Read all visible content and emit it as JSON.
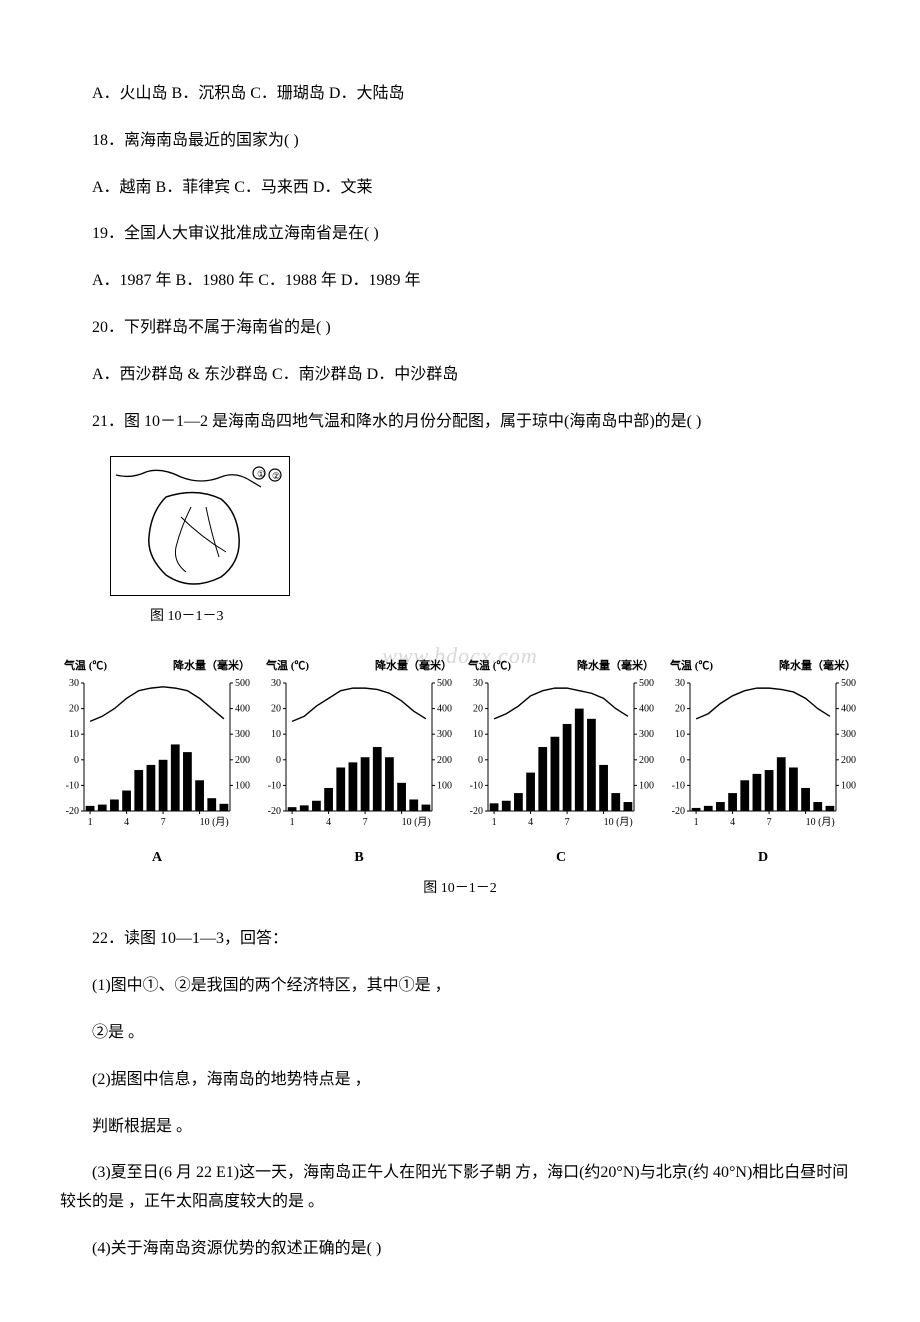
{
  "q17": {
    "options": "A．火山岛 B．沉积岛 C．珊瑚岛 D．大陆岛"
  },
  "q18": {
    "stem": "18．离海南岛最近的国家为(  )",
    "options": " A．越南 B．菲律宾 C．马来西            D．文莱"
  },
  "q19": {
    "stem": "19．全国人大审议批准成立海南省是在(  )",
    "options": "A．1987 年 B．1980 年 C．1988 年 D．1989 年"
  },
  "q20": {
    "stem": "20．下列群岛不属于海南省的是(  )",
    "options": " A．西沙群岛  & 东沙群岛 C．南沙群岛 D．中沙群岛"
  },
  "q21": {
    "stem": "21．图 10－1—2 是海南岛四地气温和降水的月份分配图，属于琼中(海南岛中部)的是(      )"
  },
  "fig_10_1_3": {
    "caption": "图 10－1－3",
    "circles": [
      "①",
      "②"
    ]
  },
  "watermark": "www.bdocx.com",
  "charts": {
    "left_axis_label": "气温 (℃)",
    "right_axis_label": "降水量（毫米）",
    "x_label": "10 (月)",
    "y_left_ticks": [
      "30",
      "20",
      "10",
      "0",
      "-10",
      "-20"
    ],
    "y_right_ticks": [
      "500",
      "400",
      "300",
      "200",
      "100"
    ],
    "x_ticks": [
      "1",
      "4",
      "7",
      "10 (月)"
    ],
    "panels": [
      {
        "letter": "A",
        "temp_points": [
          [
            0,
            15
          ],
          [
            1,
            17
          ],
          [
            2,
            20
          ],
          [
            3,
            24
          ],
          [
            4,
            27
          ],
          [
            5,
            28
          ],
          [
            6,
            28.5
          ],
          [
            7,
            28
          ],
          [
            8,
            27
          ],
          [
            9,
            24
          ],
          [
            10,
            20
          ],
          [
            11,
            16
          ]
        ],
        "temp_color": "#000000",
        "precip_bars": [
          20,
          25,
          45,
          80,
          160,
          180,
          200,
          260,
          230,
          120,
          50,
          28
        ],
        "bar_color": "#000000"
      },
      {
        "letter": "B",
        "temp_points": [
          [
            0,
            15
          ],
          [
            1,
            17
          ],
          [
            2,
            21
          ],
          [
            3,
            24
          ],
          [
            4,
            27
          ],
          [
            5,
            28
          ],
          [
            6,
            28
          ],
          [
            7,
            27.5
          ],
          [
            8,
            26
          ],
          [
            9,
            23
          ],
          [
            10,
            19
          ],
          [
            11,
            16
          ]
        ],
        "temp_color": "#000000",
        "precip_bars": [
          15,
          22,
          40,
          90,
          170,
          190,
          210,
          250,
          210,
          110,
          45,
          25
        ],
        "bar_color": "#000000"
      },
      {
        "letter": "C",
        "temp_points": [
          [
            0,
            16
          ],
          [
            1,
            18
          ],
          [
            2,
            21
          ],
          [
            3,
            25
          ],
          [
            4,
            27
          ],
          [
            5,
            28
          ],
          [
            6,
            28
          ],
          [
            7,
            27
          ],
          [
            8,
            26
          ],
          [
            9,
            24
          ],
          [
            10,
            20
          ],
          [
            11,
            17
          ]
        ],
        "temp_color": "#000000",
        "precip_bars": [
          30,
          40,
          70,
          150,
          250,
          290,
          340,
          400,
          360,
          180,
          70,
          35
        ],
        "bar_color": "#000000"
      },
      {
        "letter": "D",
        "temp_points": [
          [
            0,
            16
          ],
          [
            1,
            18
          ],
          [
            2,
            22
          ],
          [
            3,
            25
          ],
          [
            4,
            27
          ],
          [
            5,
            28
          ],
          [
            6,
            28
          ],
          [
            7,
            27.5
          ],
          [
            8,
            26.5
          ],
          [
            9,
            24
          ],
          [
            10,
            20
          ],
          [
            11,
            17
          ]
        ],
        "temp_color": "#000000",
        "precip_bars": [
          12,
          20,
          35,
          70,
          120,
          145,
          160,
          210,
          170,
          90,
          35,
          20
        ],
        "bar_color": "#000000"
      }
    ],
    "fig_caption": "图 10－1－2",
    "ylim_temp": [
      -20,
      30
    ],
    "ylim_precip": [
      0,
      500
    ],
    "background": "#ffffff"
  },
  "q22": {
    "stem": "22．读图 10—1—3，回答：",
    "p1": "(1)图中①、②是我国的两个经济特区，其中①是                  ，",
    "p1b": "②是                         。",
    "p2": "(2)据图中信息，海南岛的地势特点是                                                ，",
    "p2b": "判断根据是                                                                                   。",
    "p3": "(3)夏至日(6 月 22 E1)这一天，海南岛正午人在阳光下影子朝         方，海口(约20°N)与北京(约 40°N)相比白昼时间较长的是               ，正午太阳高度较大的是               。",
    "p4": "(4)关于海南岛资源优势的叙述正确的是(  )"
  }
}
